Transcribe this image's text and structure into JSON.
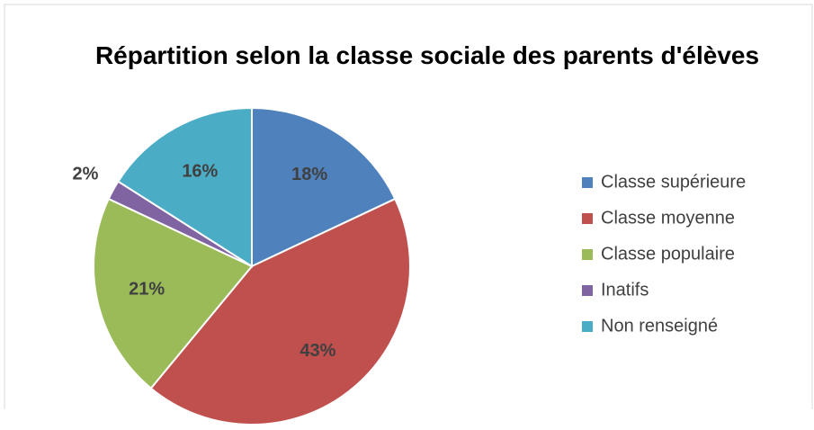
{
  "chart_data": {
    "type": "pie",
    "title": "Répartition selon la classe sociale des parents d'élèves",
    "categories": [
      "Classe supérieure",
      "Classe moyenne",
      "Classe populaire",
      "Inatifs",
      "Non renseigné"
    ],
    "values": [
      18,
      43,
      21,
      2,
      16
    ],
    "value_labels": [
      "18%",
      "43%",
      "21%",
      "2%",
      "16%"
    ],
    "colors": [
      "#4f81bd",
      "#c0504d",
      "#9bbb59",
      "#8064a2",
      "#4bacc6"
    ],
    "legend": "right"
  }
}
